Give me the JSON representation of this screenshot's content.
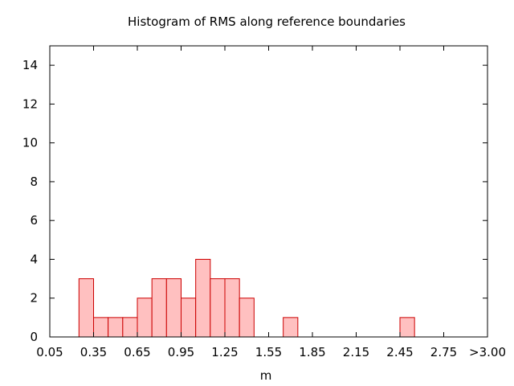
{
  "chart_data": {
    "type": "bar",
    "title": "Histogram of RMS along reference boundaries",
    "xlabel": "m",
    "ylabel": "",
    "xlim": [
      0.05,
      3.05
    ],
    "ylim": [
      0,
      15
    ],
    "x_ticks": [
      {
        "value": 0.05,
        "label": "0.05"
      },
      {
        "value": 0.35,
        "label": "0.35"
      },
      {
        "value": 0.65,
        "label": "0.65"
      },
      {
        "value": 0.95,
        "label": "0.95"
      },
      {
        "value": 1.25,
        "label": "1.25"
      },
      {
        "value": 1.55,
        "label": "1.55"
      },
      {
        "value": 1.85,
        "label": "1.85"
      },
      {
        "value": 2.15,
        "label": "2.15"
      },
      {
        "value": 2.45,
        "label": "2.45"
      },
      {
        "value": 2.75,
        "label": "2.75"
      },
      {
        "value": 3.05,
        "label": ">3.00"
      }
    ],
    "y_ticks": [
      {
        "value": 0,
        "label": "0"
      },
      {
        "value": 2,
        "label": "2"
      },
      {
        "value": 4,
        "label": "4"
      },
      {
        "value": 6,
        "label": "6"
      },
      {
        "value": 8,
        "label": "8"
      },
      {
        "value": 10,
        "label": "10"
      },
      {
        "value": 12,
        "label": "12"
      },
      {
        "value": 14,
        "label": "14"
      }
    ],
    "bin_width": 0.1,
    "bins": [
      {
        "start": 0.25,
        "count": 3
      },
      {
        "start": 0.35,
        "count": 1
      },
      {
        "start": 0.45,
        "count": 1
      },
      {
        "start": 0.55,
        "count": 1
      },
      {
        "start": 0.65,
        "count": 2
      },
      {
        "start": 0.75,
        "count": 3
      },
      {
        "start": 0.85,
        "count": 3
      },
      {
        "start": 0.95,
        "count": 2
      },
      {
        "start": 1.05,
        "count": 4
      },
      {
        "start": 1.15,
        "count": 3
      },
      {
        "start": 1.25,
        "count": 3
      },
      {
        "start": 1.35,
        "count": 2
      },
      {
        "start": 1.65,
        "count": 1
      },
      {
        "start": 2.45,
        "count": 1
      }
    ],
    "grid": false,
    "colors": {
      "bar_fill": "#ffc0c0",
      "bar_stroke": "#cc0000"
    }
  }
}
